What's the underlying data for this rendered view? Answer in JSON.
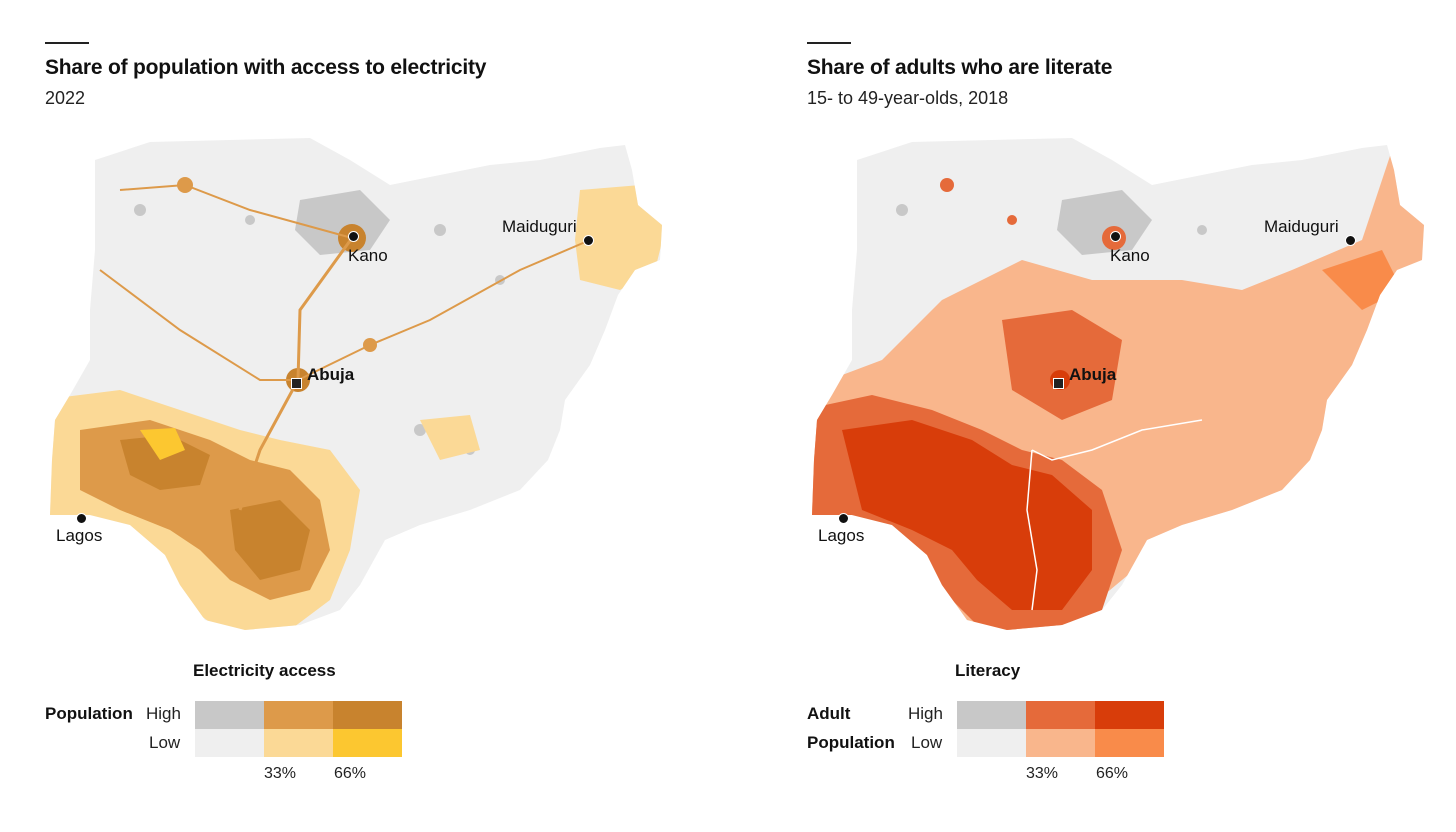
{
  "maps": [
    {
      "title": "Share of population with access to electricity",
      "subtitle": "2022",
      "cities": {
        "kano": "Kano",
        "maiduguri": "Maiduguri",
        "abuja": "Abuja",
        "lagos": "Lagos"
      },
      "legend": {
        "title": "Electricity access",
        "population_label": "Population",
        "population_label_2": "",
        "high_label": "High",
        "low_label": "Low",
        "ticks": [
          "33%",
          "66%"
        ],
        "colors": {
          "high": [
            "#c8c8c8",
            "#dd9a4a",
            "#c8832e"
          ],
          "low": [
            "#efefef",
            "#fbd996",
            "#fcc730"
          ]
        }
      }
    },
    {
      "title": "Share of adults who are literate",
      "subtitle": "15- to 49-year-olds, 2018",
      "cities": {
        "kano": "Kano",
        "maiduguri": "Maiduguri",
        "abuja": "Abuja",
        "lagos": "Lagos"
      },
      "legend": {
        "title": "Literacy",
        "population_label": "Adult",
        "population_label_2": "Population",
        "high_label": "High",
        "low_label": "Low",
        "ticks": [
          "33%",
          "66%"
        ],
        "colors": {
          "high": [
            "#c8c8c8",
            "#e56a3a",
            "#d83d0a"
          ],
          "low": [
            "#efefef",
            "#f9b68c",
            "#f98b4a"
          ]
        }
      }
    }
  ]
}
